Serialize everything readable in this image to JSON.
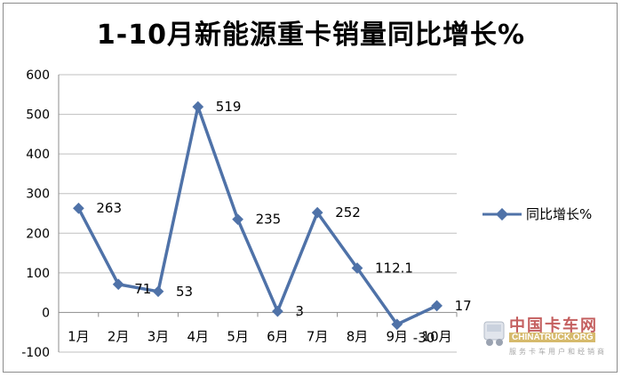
{
  "chart_data": {
    "type": "line",
    "title": "1-10月新能源重卡销量同比增长%",
    "categories": [
      "1月",
      "2月",
      "3月",
      "4月",
      "5月",
      "6月",
      "7月",
      "8月",
      "9月",
      "10月"
    ],
    "series": [
      {
        "name": "同比增长%",
        "values": [
          263,
          71,
          53,
          519,
          235,
          3,
          252,
          112.1,
          -30,
          17
        ],
        "color": "#4f72a8"
      }
    ],
    "data_labels": [
      "263",
      "71",
      "53",
      "519",
      "235",
      "3",
      "252",
      "112.1",
      "-30",
      "17"
    ],
    "y_ticks": [
      -100,
      0,
      100,
      200,
      300,
      400,
      500,
      600
    ],
    "ylim": [
      -100,
      600
    ],
    "grid": true,
    "legend": "right"
  },
  "watermark": {
    "brand": "中国卡车网",
    "english": "CHINATRUCK.ORG",
    "sub": "服务卡车用户和经销商"
  }
}
